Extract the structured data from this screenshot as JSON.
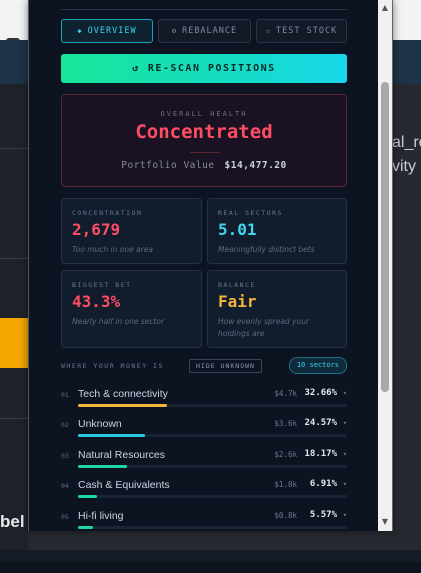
{
  "background": {
    "right_text_1": "al_re",
    "right_text_2": "vity",
    "left_label": "bel"
  },
  "tabs": [
    {
      "label": "OVERVIEW",
      "icon": "diamond-icon",
      "glyph": "◆",
      "active": true
    },
    {
      "label": "REBALANCE",
      "icon": "settings-icon",
      "glyph": "⚙",
      "active": false
    },
    {
      "label": "TEST STOCK",
      "icon": "square-icon",
      "glyph": "▫",
      "active": false
    }
  ],
  "rescan": {
    "label": "RE-SCAN POSITIONS",
    "glyph": "↺"
  },
  "health": {
    "label": "OVERALL HEALTH",
    "value": "Concentrated",
    "portfolio_label": "Portfolio Value",
    "portfolio_value": "$14,477.20"
  },
  "cards": [
    {
      "label": "CONCENTRATION",
      "value": "2,679",
      "sub": "Too much in one area",
      "color": "#ff4d63"
    },
    {
      "label": "REAL SECTORS",
      "value": "5.01",
      "sub": "Meaningfully distinct bets",
      "color": "#3fd6ee"
    },
    {
      "label": "BIGGEST BET",
      "value": "43.3%",
      "sub": "Nearly half in one sector",
      "color": "#ff4d63"
    },
    {
      "label": "BALANCE",
      "value": "Fair",
      "sub": "How evenly spread your holdings are",
      "color": "#f5b43c"
    }
  ],
  "sectors_header": {
    "title": "WHERE YOUR MONEY IS",
    "hide_label": "HIDE UNKNOWN",
    "count_label": "10 sectors"
  },
  "sectors": [
    {
      "index": "01",
      "name": "Tech & connectivity",
      "amount": "$4.7k",
      "percent": "32.66%",
      "share": 0.3266,
      "color": "#f5b43c"
    },
    {
      "index": "02",
      "name": "Unknown",
      "amount": "$3.6k",
      "percent": "24.57%",
      "share": 0.2457,
      "color": "#2fc6e0"
    },
    {
      "index": "03",
      "name": "Natural Resources",
      "amount": "$2.6k",
      "percent": "18.17%",
      "share": 0.1817,
      "color": "#1fd6a6"
    },
    {
      "index": "04",
      "name": "Cash & Equivalents",
      "amount": "$1.0k",
      "percent": "6.91%",
      "share": 0.0691,
      "color": "#1fd6a6"
    },
    {
      "index": "05",
      "name": "Hi-fi living",
      "amount": "$0.8k",
      "percent": "5.57%",
      "share": 0.0557,
      "color": "#1fd6a6"
    }
  ]
}
